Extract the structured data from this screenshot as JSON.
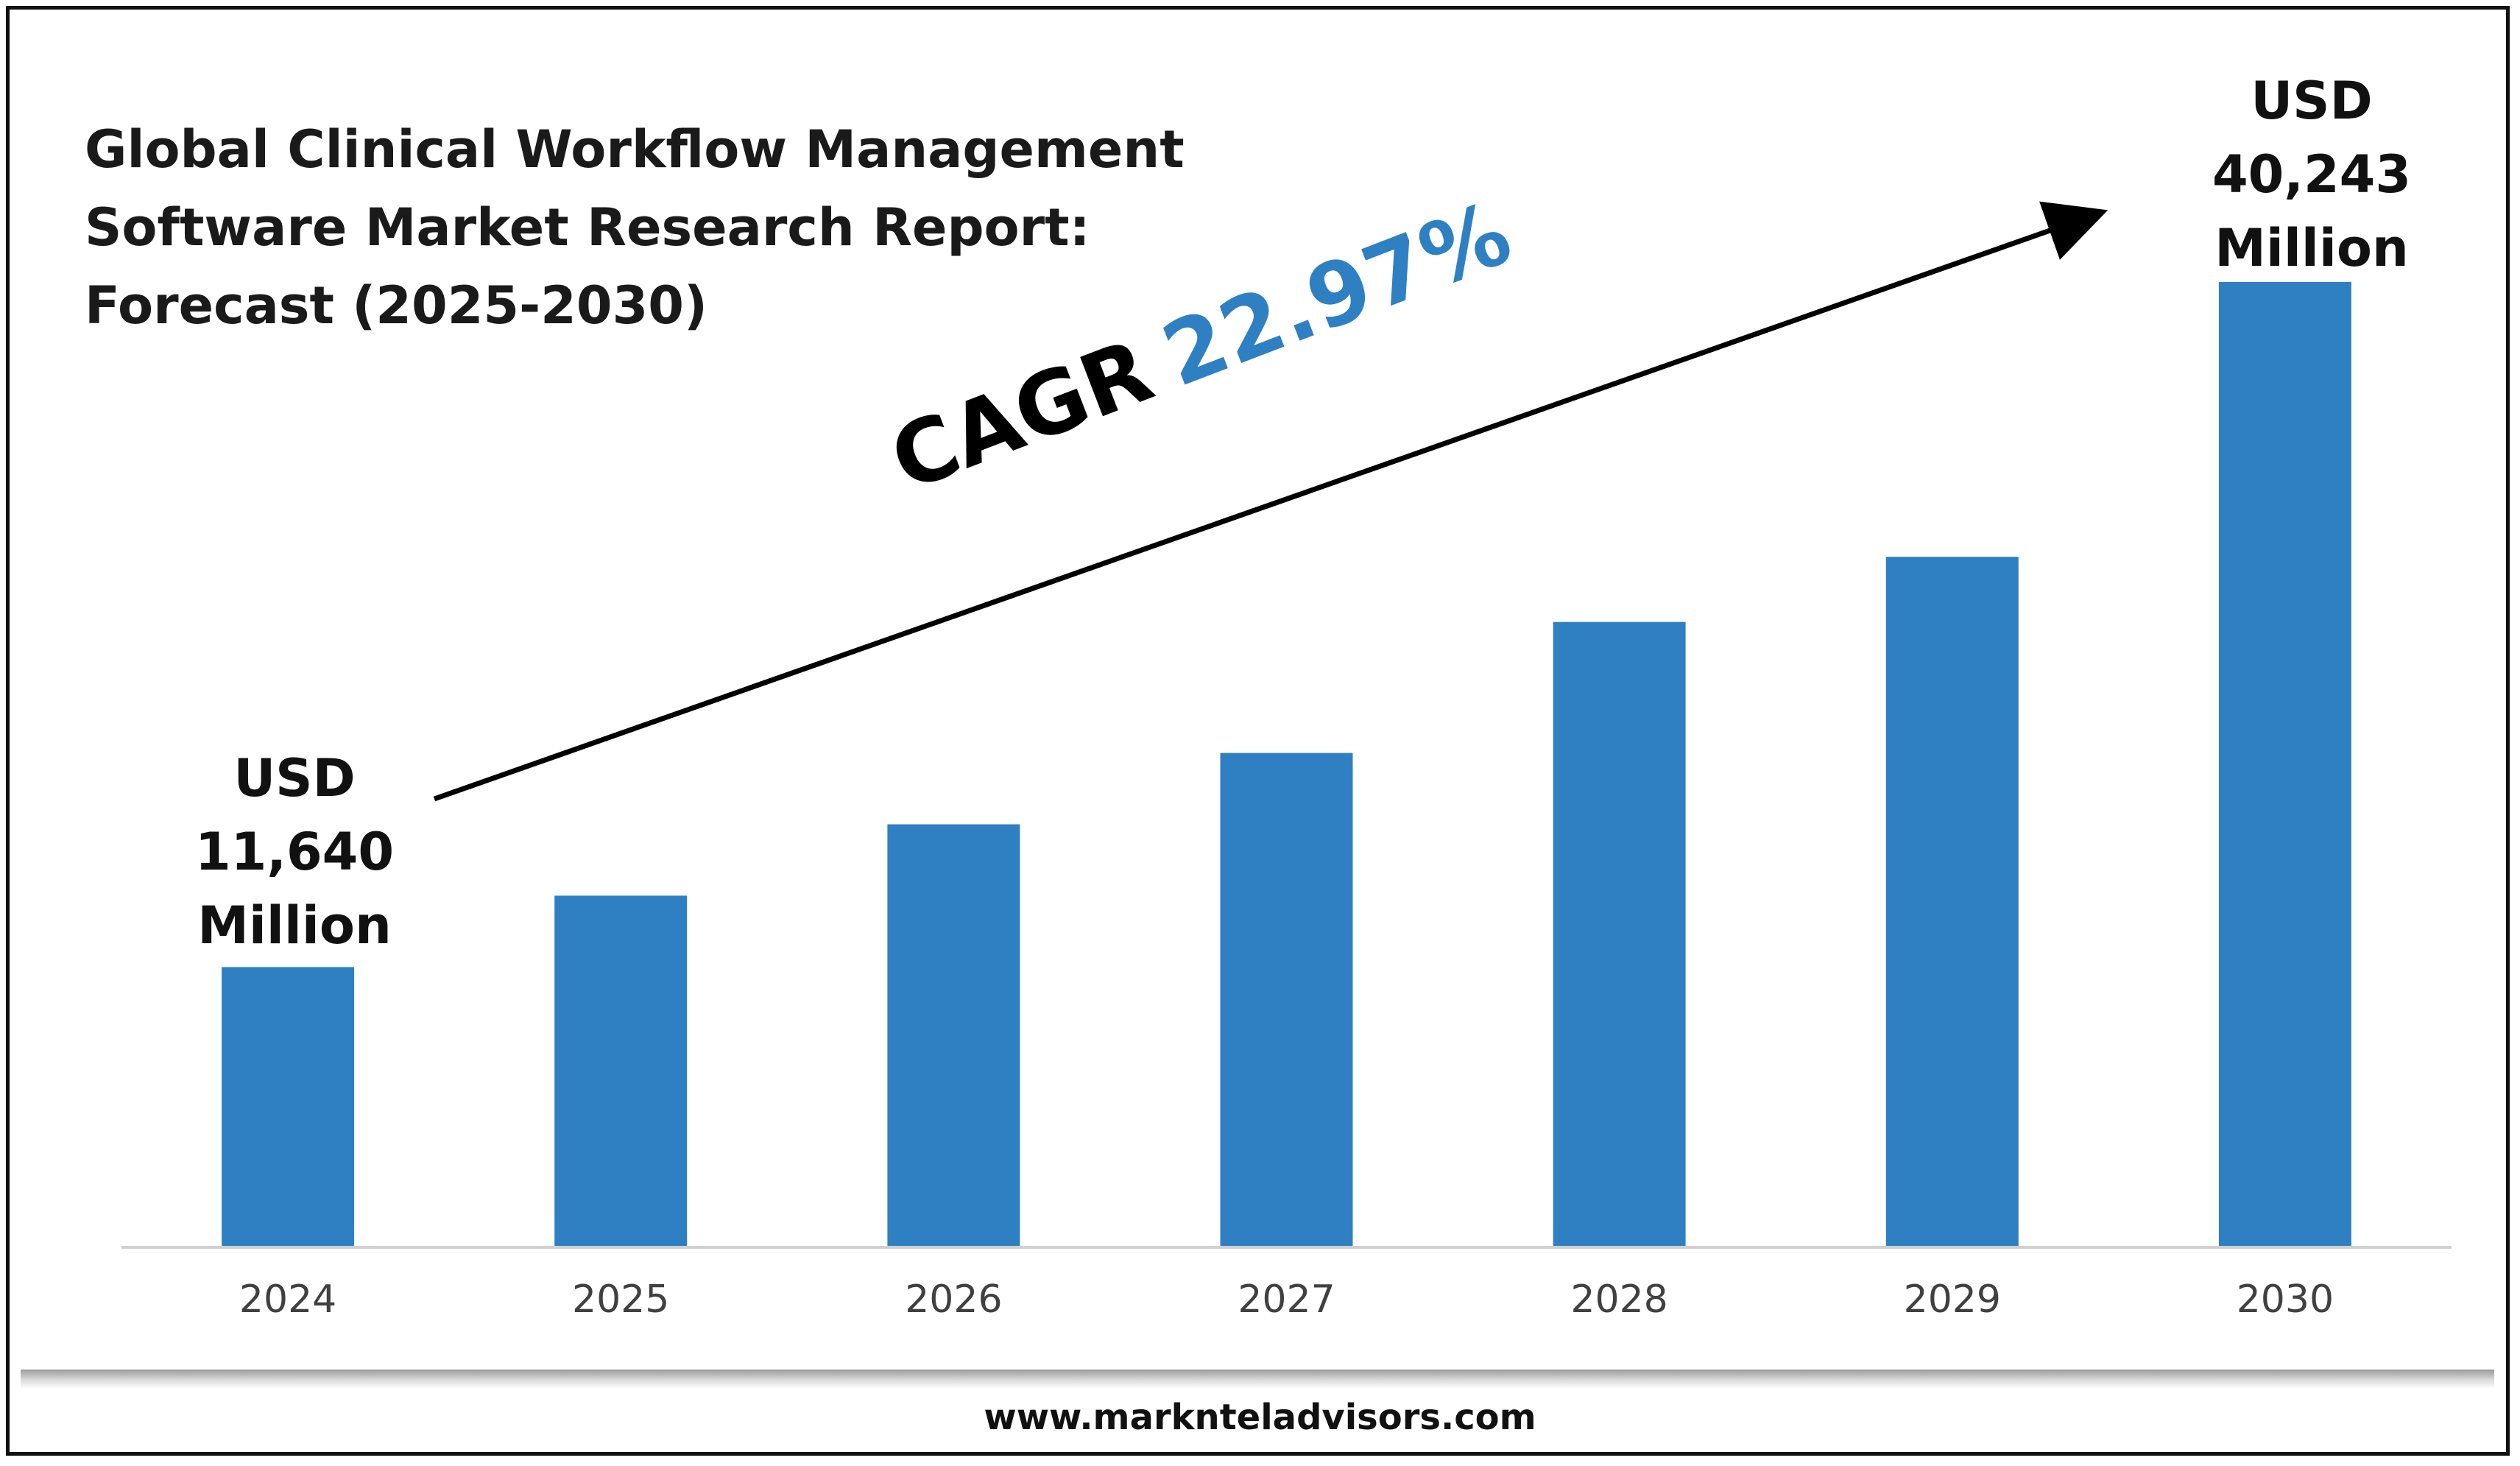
{
  "header": {
    "title_lines": [
      "Global Clinical Workflow Management",
      "Software Market Research Report:",
      "Forecast (2025-2030)"
    ]
  },
  "annotations": {
    "start_label": [
      "USD",
      "11,640",
      "Million"
    ],
    "end_label": [
      "USD",
      "40,243",
      "Million"
    ],
    "cagr_label": "CAGR",
    "cagr_value": "22.97%"
  },
  "footer": {
    "website": "www.marknteladvisors.com"
  },
  "colors": {
    "bar": "#2f80c2",
    "cagr_value": "#2f80c2",
    "axis": "#d0d0d0",
    "text": "#111111"
  },
  "chart_data": {
    "type": "bar",
    "categories": [
      "2024",
      "2025",
      "2026",
      "2027",
      "2028",
      "2029",
      "2030"
    ],
    "values": [
      11640,
      14620,
      17600,
      20580,
      26050,
      28770,
      40243
    ],
    "ylim": [
      0,
      40243
    ],
    "grid": false,
    "legend": "none",
    "trend_arrow": true
  }
}
